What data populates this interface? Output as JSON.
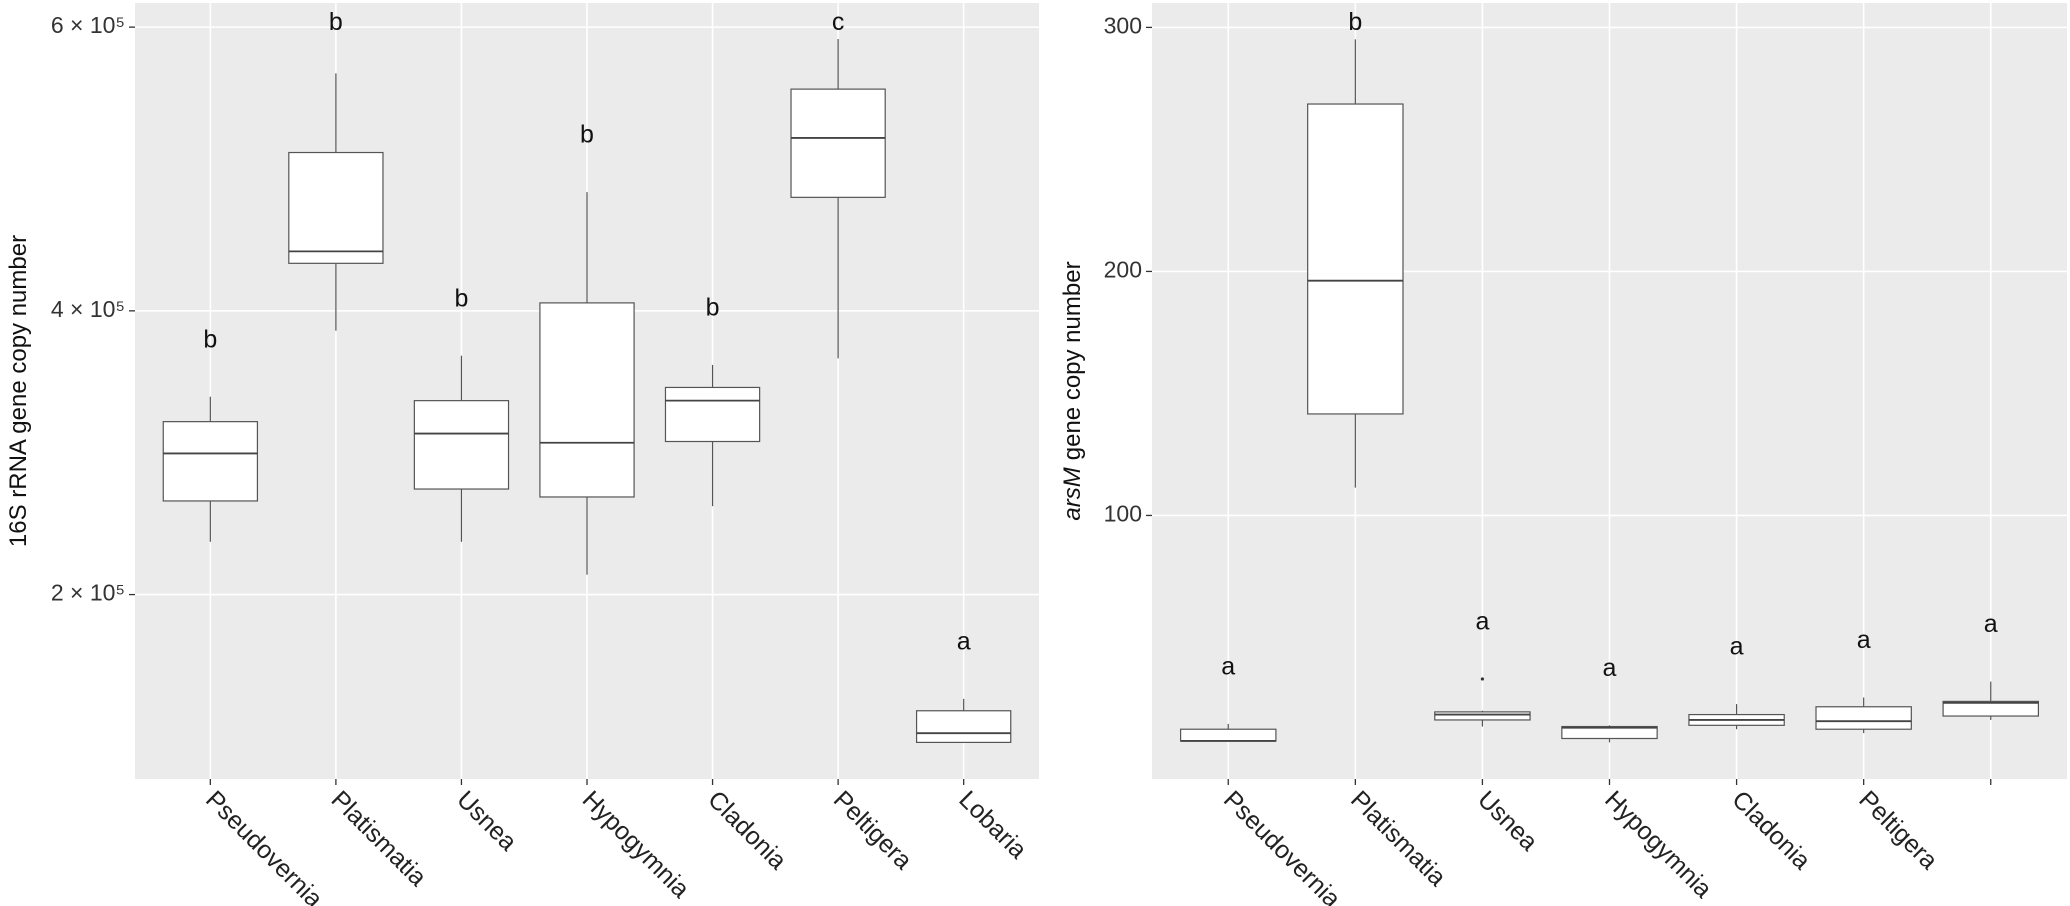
{
  "chart_data": [
    {
      "type": "box",
      "ylabel": "16S rRNA gene copy number",
      "categories": [
        "Pseudovernia",
        "Platismatia",
        "Usnea",
        "Hypogymnia",
        "Cladonia",
        "Peltigera",
        "Lobaria"
      ],
      "values": [
        {
          "min": 237200,
          "q1": 266000,
          "median": 299500,
          "q3": 321900,
          "max": 339500
        },
        {
          "min": 386000,
          "q1": 433500,
          "median": 441900,
          "q3": 511600,
          "max": 567400
        },
        {
          "min": 237200,
          "q1": 274400,
          "median": 313500,
          "q3": 336700,
          "max": 368400
        },
        {
          "min": 214000,
          "q1": 268800,
          "median": 307000,
          "q3": 405600,
          "max": 483700
        },
        {
          "min": 262300,
          "q1": 307900,
          "median": 336700,
          "q3": 346000,
          "max": 361900
        },
        {
          "min": 366500,
          "q1": 480000,
          "median": 521900,
          "q3": 556300,
          "max": 591600
        },
        {
          "min": 95800,
          "q1": 95800,
          "median": 102300,
          "q3": 118100,
          "max": 126500
        }
      ],
      "annotations": [
        "b",
        "b",
        "b",
        "b",
        "b",
        "c",
        "a"
      ],
      "ylim": [
        70000,
        617000
      ],
      "yticks": [
        {
          "value": 200000,
          "label": "2 × 10⁵"
        },
        {
          "value": 400000,
          "label": "4 × 10⁵"
        },
        {
          "value": 600000,
          "label": "6 × 10⁵"
        }
      ],
      "grid": true,
      "background": "#ebebeb",
      "color": "#ffffff"
    },
    {
      "type": "box",
      "ylabel_italic": "arsM",
      "ylabel_rest": "gene copy number",
      "categories": [
        "Pseudovernia",
        "Platismatia",
        "Usnea",
        "Hypogymnia",
        "Cladonia",
        "Peltigera",
        null
      ],
      "values": [
        {
          "min": 7.6,
          "q1": 7.6,
          "median": 7.6,
          "q3": 12.4,
          "max": 14.6
        },
        {
          "min": 111.4,
          "q1": 141.6,
          "median": 196.2,
          "q3": 268.6,
          "max": 295.1
        },
        {
          "min": 13.5,
          "q1": 16.2,
          "median": 18.4,
          "q3": 19.5,
          "max": 20,
          "outliers": [
            33
          ]
        },
        {
          "min": 7,
          "q1": 8.6,
          "median": 13,
          "q3": 13.5,
          "max": 14
        },
        {
          "min": 12.4,
          "q1": 14,
          "median": 16.2,
          "q3": 18.4,
          "max": 22.7
        },
        {
          "min": 10.8,
          "q1": 12.4,
          "median": 15.7,
          "q3": 21.6,
          "max": 25.4
        },
        {
          "min": 16.2,
          "q1": 17.8,
          "median": 23.2,
          "q3": 23.8,
          "max": 31.9
        }
      ],
      "annotations": [
        "a",
        "b",
        "a",
        "a",
        "a",
        "a",
        "a"
      ],
      "ylim": [
        -8,
        310
      ],
      "yticks": [
        100,
        200,
        300
      ],
      "grid": true,
      "background": "#ebebeb",
      "color": "#ffffff"
    }
  ]
}
